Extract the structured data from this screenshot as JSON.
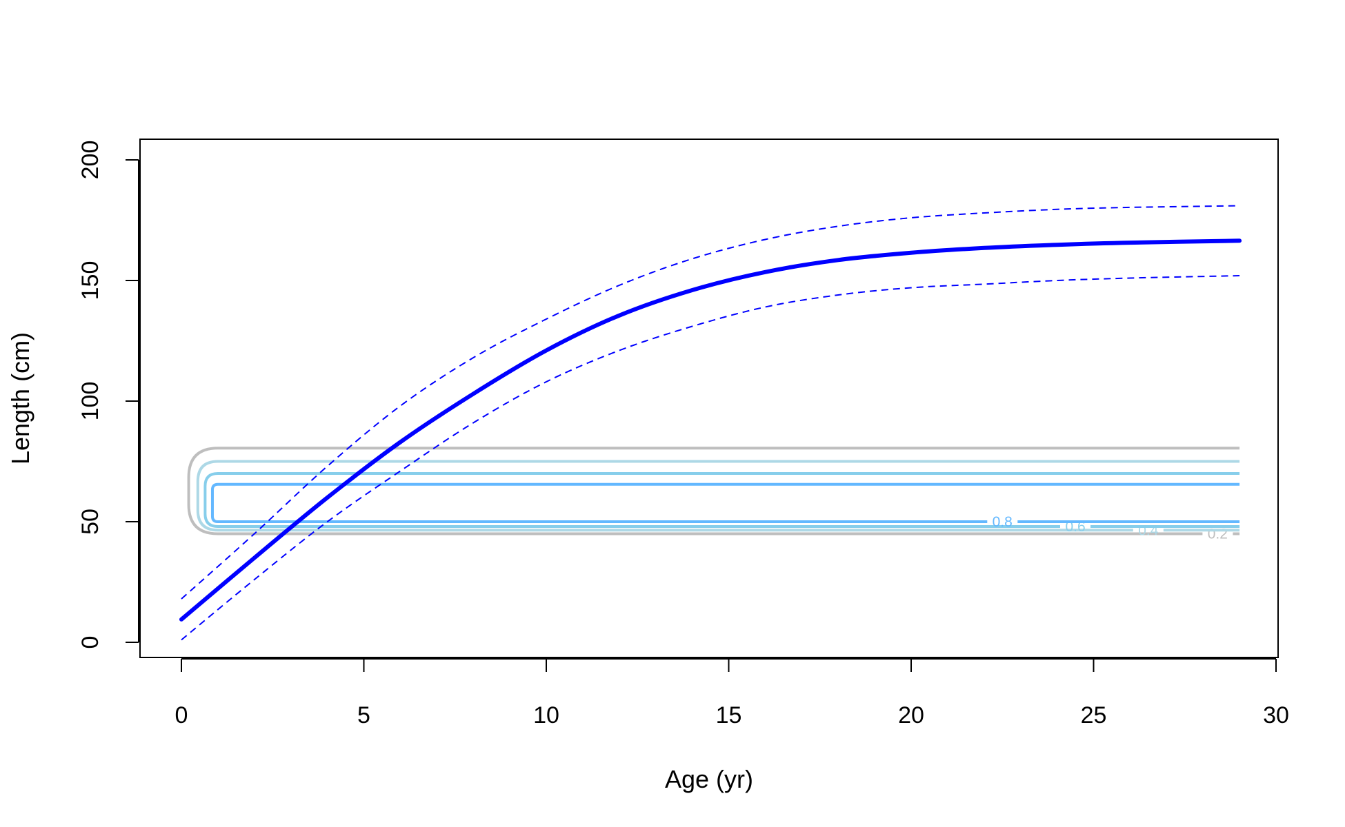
{
  "chart_data": {
    "type": "line",
    "title": "",
    "xlabel": "Age (yr)",
    "ylabel": "Length (cm)",
    "xlim": [
      0,
      30
    ],
    "ylim": [
      0,
      200
    ],
    "xticks": [
      "0",
      "5",
      "10",
      "15",
      "20",
      "25",
      "30"
    ],
    "yticks": [
      "0",
      "50",
      "100",
      "150",
      "200"
    ],
    "grid": false,
    "legend": "none",
    "series": [
      {
        "style": "solid-thick",
        "color": "#0000ff",
        "x": [
          0,
          2,
          4,
          6,
          8,
          10,
          12,
          14,
          16,
          18,
          20,
          22,
          24,
          26,
          29
        ],
        "y": [
          9.5,
          35,
          60,
          83,
          103,
          121,
          135.5,
          146,
          153.5,
          158.5,
          161.5,
          163.5,
          164.8,
          165.7,
          166.5
        ]
      },
      {
        "style": "dashed",
        "color": "#0000ff",
        "x": [
          0,
          2,
          4,
          6,
          8,
          10,
          12,
          14,
          16,
          18,
          20,
          22,
          24,
          26,
          29
        ],
        "y": [
          18,
          45,
          73,
          98,
          118,
          134,
          148,
          159,
          167,
          172.5,
          176,
          178,
          179.5,
          180.3,
          181
        ]
      },
      {
        "style": "dashed",
        "color": "#0000ff",
        "x": [
          0,
          2,
          4,
          6,
          8,
          10,
          12,
          14,
          16,
          18,
          20,
          22,
          24,
          26,
          29
        ],
        "y": [
          1,
          26,
          50,
          71,
          91,
          108,
          121,
          131,
          139,
          144,
          147,
          148.5,
          150,
          151,
          152
        ]
      }
    ],
    "contours": [
      {
        "level": "0.2",
        "color": "#bebebe",
        "x_start": 1,
        "x_end": 29,
        "y_low": 45,
        "y_high": 80.5,
        "x_label": 28.4,
        "x_bulge": 0.2
      },
      {
        "level": "0.4",
        "color": "#add8e6",
        "x_start": 1,
        "x_end": 29,
        "y_low": 46.5,
        "y_high": 75,
        "x_label": 26.5,
        "x_bulge": 0.45
      },
      {
        "level": "0.6",
        "color": "#87ceeb",
        "x_start": 1,
        "x_end": 29,
        "y_low": 48,
        "y_high": 70,
        "x_label": 24.5,
        "x_bulge": 0.65
      },
      {
        "level": "0.8",
        "color": "#63b8ff",
        "x_start": 1,
        "x_end": 29,
        "y_low": 50,
        "y_high": 65.5,
        "x_label": 22.5,
        "x_bulge": 0.85
      }
    ]
  }
}
